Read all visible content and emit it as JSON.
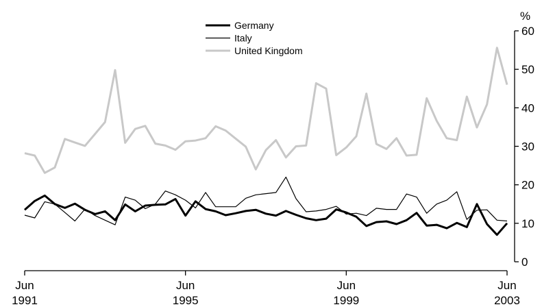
{
  "chart_data": {
    "type": "line",
    "y_unit_label": "%",
    "x": [
      "Jun-91",
      "Sep-91",
      "Dec-91",
      "Mar-92",
      "Jun-92",
      "Sep-92",
      "Dec-92",
      "Mar-93",
      "Jun-93",
      "Sep-93",
      "Dec-93",
      "Mar-94",
      "Jun-94",
      "Sep-94",
      "Dec-94",
      "Mar-95",
      "Jun-95",
      "Sep-95",
      "Dec-95",
      "Mar-96",
      "Jun-96",
      "Sep-96",
      "Dec-96",
      "Mar-97",
      "Jun-97",
      "Sep-97",
      "Dec-97",
      "Mar-98",
      "Jun-98",
      "Sep-98",
      "Dec-98",
      "Mar-99",
      "Jun-99",
      "Sep-99",
      "Dec-99",
      "Mar-00",
      "Jun-00",
      "Sep-00",
      "Dec-00",
      "Mar-01",
      "Jun-01",
      "Sep-01",
      "Dec-01",
      "Mar-02",
      "Jun-02",
      "Sep-02",
      "Dec-02",
      "Mar-03",
      "Jun-03"
    ],
    "x_ticks": [
      {
        "index": 0,
        "line1": "Jun",
        "line2": "1991"
      },
      {
        "index": 16,
        "line1": "Jun",
        "line2": "1995"
      },
      {
        "index": 32,
        "line1": "Jun",
        "line2": "1999"
      },
      {
        "index": 48,
        "line1": "Jun",
        "line2": "2003"
      }
    ],
    "ylim": [
      0,
      60
    ],
    "y_ticks": [
      0,
      10,
      20,
      30,
      40,
      50,
      60
    ],
    "legend_position": "top-center",
    "series": [
      {
        "name": "Germany",
        "color": "#000000",
        "width": 3,
        "values": [
          13.5,
          15.8,
          17.2,
          15.0,
          14.0,
          15.1,
          13.5,
          12.4,
          13.1,
          10.8,
          14.9,
          13.1,
          14.6,
          14.8,
          14.9,
          16.3,
          12.0,
          15.7,
          13.7,
          13.1,
          12.1,
          12.6,
          13.2,
          13.5,
          12.5,
          12.0,
          13.2,
          12.2,
          11.3,
          10.8,
          11.2,
          13.6,
          12.8,
          11.7,
          9.3,
          10.3,
          10.5,
          9.8,
          10.8,
          12.7,
          9.4,
          9.6,
          8.7,
          10.1,
          9.0,
          15.0,
          9.8,
          7.0,
          10.0
        ]
      },
      {
        "name": "Italy",
        "color": "#000000",
        "width": 1.2,
        "values": [
          12.1,
          11.4,
          15.6,
          15.0,
          12.8,
          10.6,
          13.7,
          12.0,
          10.8,
          9.6,
          16.8,
          16.0,
          13.8,
          15.0,
          18.4,
          17.4,
          16.0,
          14.0,
          18.0,
          14.3,
          14.3,
          14.3,
          16.5,
          17.4,
          17.7,
          18.0,
          22.0,
          16.4,
          13.0,
          13.2,
          13.6,
          14.4,
          12.4,
          12.6,
          12.0,
          13.9,
          13.6,
          13.6,
          17.6,
          16.8,
          12.6,
          15.0,
          16.0,
          18.2,
          11.0,
          13.4,
          13.5,
          10.8,
          10.6
        ]
      },
      {
        "name": "United Kingdom",
        "color": "#c8c8c8",
        "width": 3,
        "values": [
          28.2,
          27.6,
          23.1,
          24.5,
          31.9,
          31.0,
          30.1,
          33.2,
          36.3,
          49.8,
          30.9,
          34.5,
          35.3,
          30.7,
          30.2,
          29.1,
          31.3,
          31.5,
          32.1,
          35.2,
          34.1,
          32.0,
          29.9,
          24.0,
          29.0,
          31.6,
          27.1,
          30.0,
          30.2,
          46.4,
          45.0,
          27.7,
          29.7,
          32.6,
          43.7,
          30.6,
          29.3,
          32.1,
          27.6,
          27.8,
          42.5,
          36.6,
          32.1,
          31.6,
          42.9,
          34.9,
          40.9,
          55.6,
          46.0
        ]
      }
    ]
  }
}
